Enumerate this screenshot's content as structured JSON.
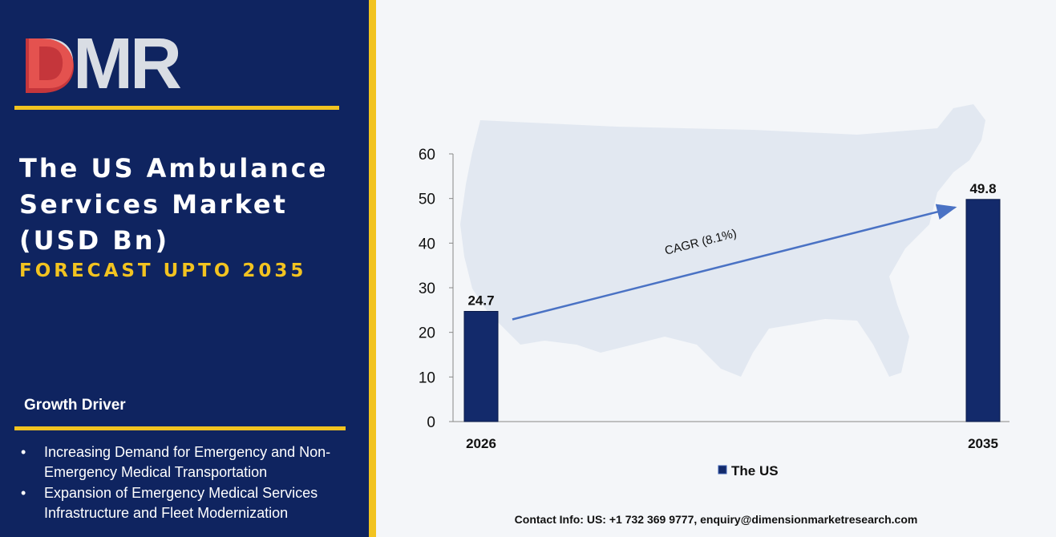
{
  "brand": {
    "logo_text": "DMR"
  },
  "left_panel": {
    "title_lines": [
      "The US Ambulance",
      "Services Market",
      "(USD Bn)"
    ],
    "subtitle": "FORECAST UPTO 2035",
    "growth_driver_heading": "Growth Driver",
    "drivers": [
      "Increasing Demand for Emergency and Non-Emergency Medical Transportation",
      "Expansion of Emergency Medical Services Infrastructure and Fleet Modernization"
    ]
  },
  "colors": {
    "navy": "#0f2460",
    "gold": "#f2c320",
    "bar": "#132a6b",
    "arrow": "#4a72c4",
    "map": "#dde5ef"
  },
  "chart_data": {
    "type": "bar",
    "categories": [
      "2026",
      "2035"
    ],
    "series": [
      {
        "name": "The US",
        "values": [
          24.7,
          49.8
        ]
      }
    ],
    "data_labels": [
      "24.7",
      "49.8"
    ],
    "ylim": [
      0,
      60
    ],
    "yticks": [
      0,
      10,
      20,
      30,
      40,
      50,
      60
    ],
    "annotation": "CAGR (8.1%)",
    "legend_position": "bottom-center",
    "grid": false
  },
  "footer": {
    "contact": "Contact Info: US: +1 732 369 9777, enquiry@dimensionmarketresearch.com"
  }
}
